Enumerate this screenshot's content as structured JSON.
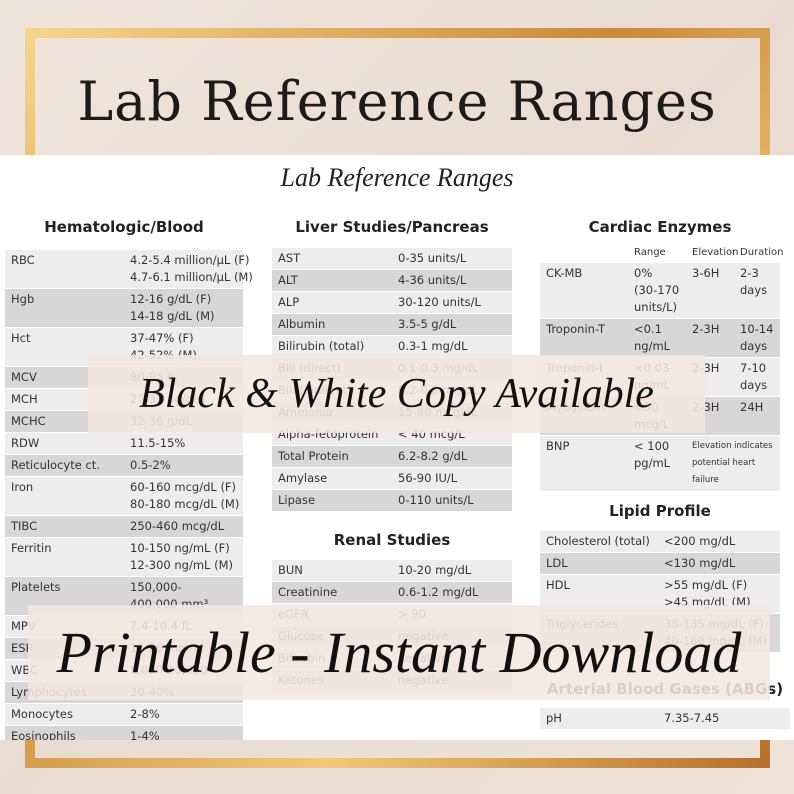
{
  "header": {
    "title": "Lab Reference Ranges",
    "sheet_title": "Lab Reference Ranges"
  },
  "sections": [
    {
      "title": "Hematologic/Blood",
      "rows": [
        [
          "RBC",
          [
            "4.2-5.4 million/µL (F)",
            "4.7-6.1 million/µL (M)"
          ]
        ],
        [
          "Hgb",
          [
            "12-16 g/dL (F)",
            "14-18 g/dL (M)"
          ]
        ],
        [
          "Hct",
          [
            "37-47% (F)",
            "42-52% (M)"
          ]
        ],
        [
          "MCV",
          "80-95 fL"
        ],
        [
          "MCH",
          "27-31 pg/cell"
        ],
        [
          "MCHC",
          "32-36 g/dL"
        ],
        [
          "RDW",
          "11.5-15%"
        ],
        [
          "Reticulocyte ct.",
          "0.5-2%"
        ],
        [
          "Iron",
          [
            "60-160 mcg/dL (F)",
            "80-180 mcg/dL (M)"
          ]
        ],
        [
          "TIBC",
          "250-460 mcg/dL"
        ],
        [
          "Ferritin",
          [
            "10-150 ng/mL (F)",
            "12-300 ng/mL (M)"
          ]
        ],
        [
          "Platelets",
          [
            "150,000-",
            "400,000 mm³"
          ]
        ],
        [
          "MPV",
          "7.4-10.4 fL"
        ],
        [
          "ESR",
          "15-20 mm/hr"
        ],
        [
          "WBC",
          "5,000-10,000"
        ],
        [
          "Lymphocytes",
          "20-40%"
        ],
        [
          "Monocytes",
          "2-8%"
        ],
        [
          "Eosinophils",
          "1-4%"
        ]
      ]
    },
    {
      "title": "Liver Studies/Pancreas",
      "rows": [
        [
          "AST",
          "0-35 units/L"
        ],
        [
          "ALT",
          "4-36 units/L"
        ],
        [
          "ALP",
          "30-120 units/L"
        ],
        [
          "Albumin",
          "3.5-5 g/dL"
        ],
        [
          "Bilirubin (total)",
          "0.3-1 mg/dL"
        ],
        [
          "Bili (direct)",
          "0.1-0.3 mg/dL"
        ],
        [
          "Bili (indirect)",
          "0.2-0.8 mg/dL"
        ],
        [
          "Ammonia",
          "15-80 mcg/dL"
        ],
        [
          "Alpha-fetoprotein",
          "< 40 mcg/L"
        ],
        [
          "Total Protein",
          "6.2-8.2 g/dL"
        ],
        [
          "Amylase",
          "56-90 IU/L"
        ],
        [
          "Lipase",
          "0-110 units/L"
        ]
      ]
    },
    {
      "title": "Renal Studies",
      "rows": [
        [
          "BUN",
          "10-20 mg/dL"
        ],
        [
          "Creatinine",
          "0.6-1.2 mg/dL"
        ],
        [
          "eGFR",
          "> 90"
        ],
        [
          "Glucose",
          "negative"
        ],
        [
          "Bilirubin",
          "negative"
        ],
        [
          "Ketones",
          "negative"
        ]
      ]
    },
    {
      "title": "Cardiac Enzymes",
      "columns": [
        "Range",
        "Elevation",
        "Duration"
      ],
      "rows": [
        [
          "CK-MB",
          [
            "0%",
            "(30-170",
            "units/L)"
          ],
          "3-6H",
          [
            "2-3",
            "days"
          ]
        ],
        [
          "Troponin-T",
          [
            "<0.1",
            "ng/mL"
          ],
          "2-3H",
          [
            "10-14",
            "days"
          ]
        ],
        [
          "Troponin-I",
          [
            "<0.03",
            "ng/mL"
          ],
          "2-3H",
          [
            "7-10",
            "days"
          ]
        ],
        [
          "Myoglobin",
          [
            "<90",
            "mcg/L"
          ],
          "2-3H",
          "24H"
        ],
        [
          "BNP",
          [
            "< 100",
            "pg/mL"
          ],
          [
            "Elevation indicates",
            "potential heart",
            "failure"
          ]
        ]
      ]
    },
    {
      "title": "Lipid Profile",
      "rows": [
        [
          "Cholesterol (total)",
          "<200 mg/dL"
        ],
        [
          "LDL",
          "<130 mg/dL"
        ],
        [
          "HDL",
          [
            ">55 mg/dL (F)",
            ">45 mg/dL (M)"
          ]
        ],
        [
          "Triglycerides",
          [
            "35-135 mg/dL (F)",
            "40-160 mg/dL (M)"
          ]
        ]
      ]
    },
    {
      "title": "Arterial Blood Gases (ABGs)",
      "rows": [
        [
          "pH",
          "7.35-7.45"
        ]
      ]
    }
  ],
  "banners": [
    "Black & White Copy Available",
    "Printable - Instant Download"
  ]
}
